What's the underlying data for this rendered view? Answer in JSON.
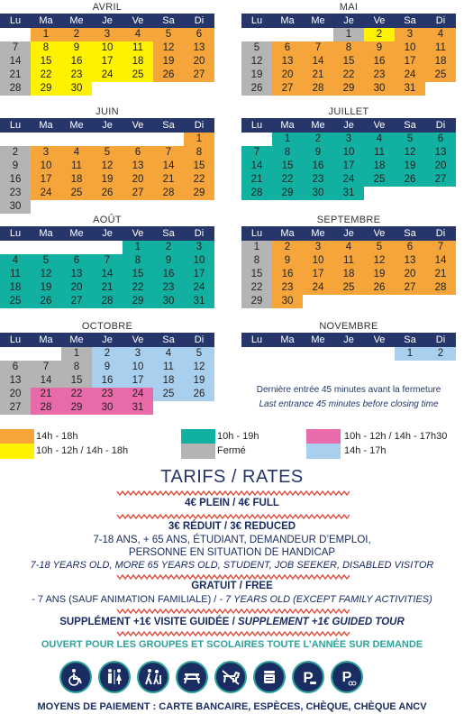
{
  "days": [
    "Lu",
    "Ma",
    "Me",
    "Je",
    "Ve",
    "Sa",
    "Di"
  ],
  "colors": {
    "orange": "#f5a53a",
    "yellow": "#fff200",
    "teal": "#12b0a1",
    "gray": "#b4b4b4",
    "pink": "#e96aa8",
    "blue": "#a9cfee"
  },
  "months": [
    {
      "name": "AVRIL",
      "pos": [
        0,
        0
      ],
      "cells": [
        [
          null,
          "",
          "white"
        ],
        [
          1,
          "orange"
        ],
        [
          2,
          "orange"
        ],
        [
          3,
          "orange"
        ],
        [
          4,
          "orange"
        ],
        [
          5,
          "orange"
        ],
        [
          6,
          "orange"
        ],
        [
          7,
          "gray"
        ],
        [
          8,
          "yellow"
        ],
        [
          9,
          "yellow"
        ],
        [
          10,
          "yellow"
        ],
        [
          11,
          "yellow"
        ],
        [
          12,
          "orange"
        ],
        [
          13,
          "orange"
        ],
        [
          14,
          "gray"
        ],
        [
          15,
          "yellow"
        ],
        [
          16,
          "yellow"
        ],
        [
          17,
          "yellow"
        ],
        [
          18,
          "yellow"
        ],
        [
          19,
          "orange"
        ],
        [
          20,
          "orange"
        ],
        [
          21,
          "gray"
        ],
        [
          22,
          "yellow"
        ],
        [
          23,
          "yellow"
        ],
        [
          24,
          "yellow"
        ],
        [
          25,
          "yellow"
        ],
        [
          26,
          "orange"
        ],
        [
          27,
          "orange"
        ],
        [
          28,
          "gray"
        ],
        [
          29,
          "yellow"
        ],
        [
          30,
          "yellow"
        ]
      ]
    },
    {
      "name": "MAI",
      "pos": [
        1,
        0
      ],
      "cells": [
        [
          null,
          ""
        ],
        [
          null,
          ""
        ],
        [
          null,
          ""
        ],
        [
          1,
          "gray"
        ],
        [
          2,
          "yellow"
        ],
        [
          3,
          "orange"
        ],
        [
          4,
          "orange"
        ],
        [
          5,
          "gray"
        ],
        [
          6,
          "orange"
        ],
        [
          7,
          "orange"
        ],
        [
          8,
          "orange"
        ],
        [
          9,
          "orange"
        ],
        [
          10,
          "orange"
        ],
        [
          11,
          "orange"
        ],
        [
          12,
          "gray"
        ],
        [
          13,
          "orange"
        ],
        [
          14,
          "orange"
        ],
        [
          15,
          "orange"
        ],
        [
          16,
          "orange"
        ],
        [
          17,
          "orange"
        ],
        [
          18,
          "orange"
        ],
        [
          19,
          "gray"
        ],
        [
          20,
          "orange"
        ],
        [
          21,
          "orange"
        ],
        [
          22,
          "orange"
        ],
        [
          23,
          "orange"
        ],
        [
          24,
          "orange"
        ],
        [
          25,
          "orange"
        ],
        [
          26,
          "gray"
        ],
        [
          27,
          "orange"
        ],
        [
          28,
          "orange"
        ],
        [
          29,
          "orange"
        ],
        [
          30,
          "orange"
        ],
        [
          31,
          "orange"
        ]
      ]
    },
    {
      "name": "JUIN",
      "pos": [
        0,
        1
      ],
      "cells": [
        [
          null,
          ""
        ],
        [
          null,
          ""
        ],
        [
          null,
          ""
        ],
        [
          null,
          ""
        ],
        [
          null,
          ""
        ],
        [
          null,
          ""
        ],
        [
          1,
          "orange"
        ],
        [
          2,
          "gray"
        ],
        [
          3,
          "orange"
        ],
        [
          4,
          "orange"
        ],
        [
          5,
          "orange"
        ],
        [
          6,
          "orange"
        ],
        [
          7,
          "orange"
        ],
        [
          8,
          "orange"
        ],
        [
          9,
          "gray"
        ],
        [
          10,
          "orange"
        ],
        [
          11,
          "orange"
        ],
        [
          12,
          "orange"
        ],
        [
          13,
          "orange"
        ],
        [
          14,
          "orange"
        ],
        [
          15,
          "orange"
        ],
        [
          16,
          "gray"
        ],
        [
          17,
          "orange"
        ],
        [
          18,
          "orange"
        ],
        [
          19,
          "orange"
        ],
        [
          20,
          "orange"
        ],
        [
          21,
          "orange"
        ],
        [
          22,
          "orange"
        ],
        [
          23,
          "gray"
        ],
        [
          24,
          "orange"
        ],
        [
          25,
          "orange"
        ],
        [
          26,
          "orange"
        ],
        [
          27,
          "orange"
        ],
        [
          28,
          "orange"
        ],
        [
          29,
          "orange"
        ],
        [
          30,
          "gray"
        ]
      ]
    },
    {
      "name": "JUILLET",
      "pos": [
        1,
        1
      ],
      "cells": [
        [
          null,
          ""
        ],
        [
          1,
          "teal"
        ],
        [
          2,
          "teal"
        ],
        [
          3,
          "teal"
        ],
        [
          4,
          "teal"
        ],
        [
          5,
          "teal"
        ],
        [
          6,
          "teal"
        ],
        [
          7,
          "teal"
        ],
        [
          8,
          "teal"
        ],
        [
          9,
          "teal"
        ],
        [
          10,
          "teal"
        ],
        [
          11,
          "teal"
        ],
        [
          12,
          "teal"
        ],
        [
          13,
          "teal"
        ],
        [
          14,
          "teal"
        ],
        [
          15,
          "teal"
        ],
        [
          16,
          "teal"
        ],
        [
          17,
          "teal"
        ],
        [
          18,
          "teal"
        ],
        [
          19,
          "teal"
        ],
        [
          20,
          "teal"
        ],
        [
          21,
          "teal"
        ],
        [
          22,
          "teal"
        ],
        [
          23,
          "teal"
        ],
        [
          24,
          "teal"
        ],
        [
          25,
          "teal"
        ],
        [
          26,
          "teal"
        ],
        [
          27,
          "teal"
        ],
        [
          28,
          "teal"
        ],
        [
          29,
          "teal"
        ],
        [
          30,
          "teal"
        ],
        [
          31,
          "teal"
        ]
      ]
    },
    {
      "name": "AOÛT",
      "pos": [
        0,
        2
      ],
      "cells": [
        [
          null,
          ""
        ],
        [
          null,
          ""
        ],
        [
          null,
          ""
        ],
        [
          null,
          ""
        ],
        [
          1,
          "teal"
        ],
        [
          2,
          "teal"
        ],
        [
          3,
          "teal"
        ],
        [
          4,
          "teal"
        ],
        [
          5,
          "teal"
        ],
        [
          6,
          "teal"
        ],
        [
          7,
          "teal"
        ],
        [
          8,
          "teal"
        ],
        [
          9,
          "teal"
        ],
        [
          10,
          "teal"
        ],
        [
          11,
          "teal"
        ],
        [
          12,
          "teal"
        ],
        [
          13,
          "teal"
        ],
        [
          14,
          "teal"
        ],
        [
          15,
          "teal"
        ],
        [
          16,
          "teal"
        ],
        [
          17,
          "teal"
        ],
        [
          18,
          "teal"
        ],
        [
          19,
          "teal"
        ],
        [
          20,
          "teal"
        ],
        [
          21,
          "teal"
        ],
        [
          22,
          "teal"
        ],
        [
          23,
          "teal"
        ],
        [
          24,
          "teal"
        ],
        [
          25,
          "teal"
        ],
        [
          26,
          "teal"
        ],
        [
          27,
          "teal"
        ],
        [
          28,
          "teal"
        ],
        [
          29,
          "teal"
        ],
        [
          30,
          "teal"
        ],
        [
          31,
          "teal"
        ]
      ]
    },
    {
      "name": "SEPTEMBRE",
      "pos": [
        1,
        2
      ],
      "cells": [
        [
          1,
          "gray"
        ],
        [
          2,
          "orange"
        ],
        [
          3,
          "orange"
        ],
        [
          4,
          "orange"
        ],
        [
          5,
          "orange"
        ],
        [
          6,
          "orange"
        ],
        [
          7,
          "orange"
        ],
        [
          8,
          "gray"
        ],
        [
          9,
          "orange"
        ],
        [
          10,
          "orange"
        ],
        [
          11,
          "orange"
        ],
        [
          12,
          "orange"
        ],
        [
          13,
          "orange"
        ],
        [
          14,
          "orange"
        ],
        [
          15,
          "gray"
        ],
        [
          16,
          "orange"
        ],
        [
          17,
          "orange"
        ],
        [
          18,
          "orange"
        ],
        [
          19,
          "orange"
        ],
        [
          20,
          "orange"
        ],
        [
          21,
          "orange"
        ],
        [
          22,
          "gray"
        ],
        [
          23,
          "orange"
        ],
        [
          24,
          "orange"
        ],
        [
          25,
          "orange"
        ],
        [
          26,
          "orange"
        ],
        [
          27,
          "orange"
        ],
        [
          28,
          "orange"
        ],
        [
          29,
          "gray"
        ],
        [
          30,
          "orange"
        ]
      ]
    },
    {
      "name": "OCTOBRE",
      "pos": [
        0,
        3
      ],
      "cells": [
        [
          null,
          ""
        ],
        [
          null,
          ""
        ],
        [
          1,
          "gray"
        ],
        [
          2,
          "blue"
        ],
        [
          3,
          "blue"
        ],
        [
          4,
          "blue"
        ],
        [
          5,
          "blue"
        ],
        [
          6,
          "gray"
        ],
        [
          7,
          "gray"
        ],
        [
          8,
          "gray"
        ],
        [
          9,
          "blue"
        ],
        [
          10,
          "blue"
        ],
        [
          11,
          "blue"
        ],
        [
          12,
          "blue"
        ],
        [
          13,
          "gray"
        ],
        [
          14,
          "gray"
        ],
        [
          15,
          "gray"
        ],
        [
          16,
          "blue"
        ],
        [
          17,
          "blue"
        ],
        [
          18,
          "blue"
        ],
        [
          19,
          "blue"
        ],
        [
          20,
          "gray"
        ],
        [
          21,
          "pink"
        ],
        [
          22,
          "pink"
        ],
        [
          23,
          "pink"
        ],
        [
          24,
          "pink"
        ],
        [
          25,
          "blue"
        ],
        [
          26,
          "blue"
        ],
        [
          27,
          "gray"
        ],
        [
          28,
          "pink"
        ],
        [
          29,
          "pink"
        ],
        [
          30,
          "pink"
        ],
        [
          31,
          "pink"
        ]
      ]
    },
    {
      "name": "NOVEMBRE",
      "pos": [
        1,
        3
      ],
      "cells": [
        [
          null,
          ""
        ],
        [
          null,
          ""
        ],
        [
          null,
          ""
        ],
        [
          null,
          ""
        ],
        [
          null,
          ""
        ],
        [
          1,
          "blue"
        ],
        [
          2,
          "blue"
        ]
      ]
    }
  ],
  "notes": {
    "fr": "Dernière entrée 45 minutes avant la fermeture",
    "en": "Last entrance 45 minutes before closing time"
  },
  "legend": [
    {
      "color": "orange",
      "label": "14h - 18h"
    },
    {
      "color": "teal",
      "label": "10h - 19h"
    },
    {
      "color": "pink",
      "label": "10h - 12h / 14h - 17h30"
    },
    {
      "color": "yellow",
      "label": "10h - 12h / 14h - 18h"
    },
    {
      "color": "gray",
      "label": "Fermé"
    },
    {
      "color": "blue",
      "label": "14h - 17h"
    }
  ],
  "tarifs": {
    "title": "TARIFS / RATES",
    "plein": "4€ PLEIN / 4€ FULL",
    "reduit": "3€ RÉDUIT / 3€ REDUCED",
    "reduit_fr_1": "7-18 ANS, + 65 ANS, ÉTUDIANT, DEMANDEUR D’EMPLOI,",
    "reduit_fr_2": "PERSONNE EN SITUATION DE HANDICAP",
    "reduit_en": "7-18 YEARS OLD, MORE 65 YEARS OLD, STUDENT, JOB SEEKER, DISABLED VISITOR",
    "gratuit": "GRATUIT / FREE",
    "gratuit_detail_fr": "- 7 ANS (SAUF ANIMATION FAMILIALE) / ",
    "gratuit_detail_en": "- 7 YEARS OLD (EXCEPT FAMILY ACTIVITIES)",
    "supplement_fr": "SUPPLÉMENT +1€ VISITE GUIDÉE / ",
    "supplement_en": "SUPPLEMENT +1€ GUIDED TOUR",
    "groupes": "OUVERT POUR LES GROUPES ET SCOLAIRES TOUTE L’ANNÉE SUR DEMANDE",
    "paiement": "MOYENS DE PAIEMENT : CARTE BANCAIRE, ESPÈCES, CHÈQUE, CHÈQUE ANCV"
  },
  "icons": [
    "wheelchair-icon",
    "toilets-icon",
    "hiking-icon",
    "picnic-icon",
    "dog-icon",
    "bin-icon",
    "parking-car-icon",
    "parking-bike-icon"
  ],
  "parking_letter": "P"
}
